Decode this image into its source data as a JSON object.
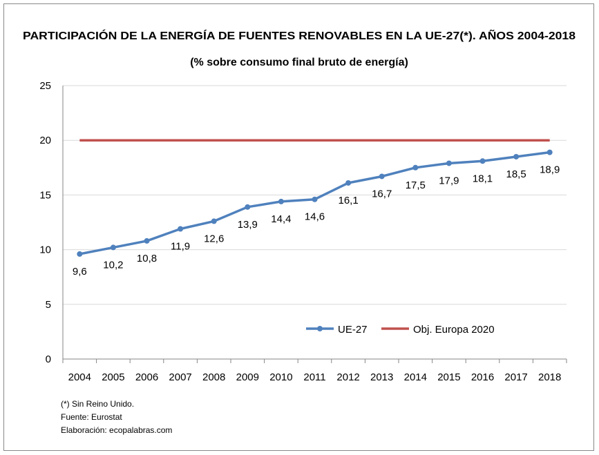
{
  "chart_data": {
    "type": "line",
    "title": "PARTICIPACIÓN DE LA ENERGÍA DE FUENTES RENOVABLES EN LA UE-27(*). AÑOS 2004-2018",
    "subtitle": "(% sobre consumo final bruto de energía)",
    "xlabel": "",
    "ylabel": "",
    "categories": [
      "2004",
      "2005",
      "2006",
      "2007",
      "2008",
      "2009",
      "2010",
      "2011",
      "2012",
      "2013",
      "2014",
      "2015",
      "2016",
      "2017",
      "2018"
    ],
    "ylim": [
      0,
      25
    ],
    "yticks": [
      "0",
      "5",
      "10",
      "15",
      "20",
      "25"
    ],
    "grid": true,
    "legend_position": "bottom-right inside",
    "series": [
      {
        "name": "UE-27",
        "color": "#4F81BD",
        "values": [
          9.6,
          10.2,
          10.8,
          11.9,
          12.6,
          13.9,
          14.4,
          14.6,
          16.1,
          16.7,
          17.5,
          17.9,
          18.1,
          18.5,
          18.9
        ],
        "labels": [
          "9,6",
          "10,2",
          "10,8",
          "11,9",
          "12,6",
          "13,9",
          "14,4",
          "14,6",
          "16,1",
          "16,7",
          "17,5",
          "17,9",
          "18,1",
          "18,5",
          "18,9"
        ]
      },
      {
        "name": "Obj. Europa 2020",
        "color": "#C0504D",
        "values": [
          20,
          20,
          20,
          20,
          20,
          20,
          20,
          20,
          20,
          20,
          20,
          20,
          20,
          20,
          20
        ]
      }
    ]
  },
  "notes": [
    "(*) Sin Reino Unido.",
    "Fuente: Eurostat",
    "Elaboración: ecopalabras.com"
  ]
}
